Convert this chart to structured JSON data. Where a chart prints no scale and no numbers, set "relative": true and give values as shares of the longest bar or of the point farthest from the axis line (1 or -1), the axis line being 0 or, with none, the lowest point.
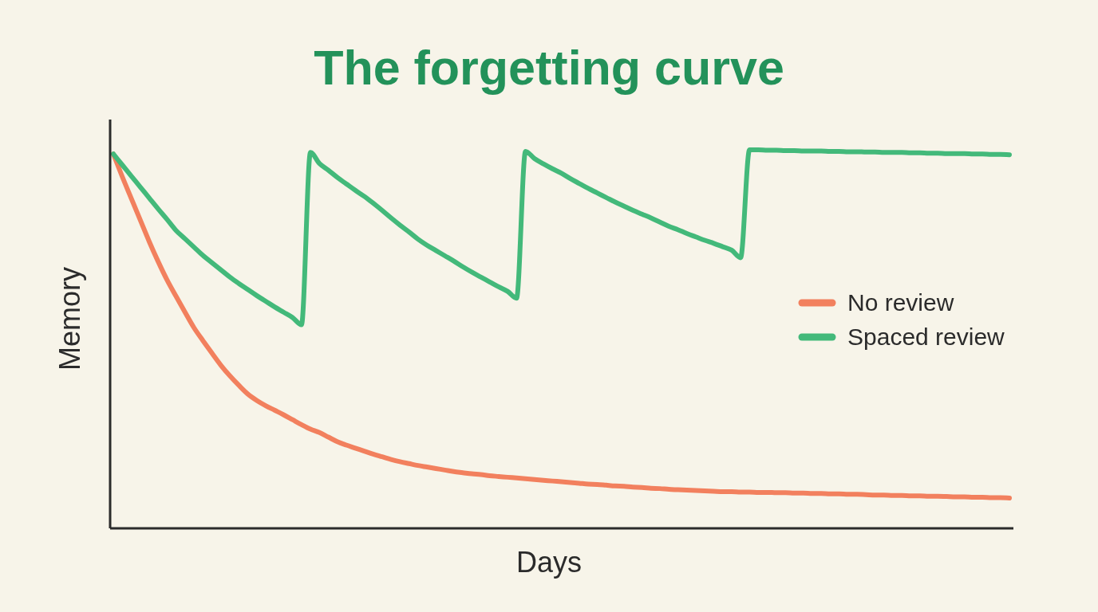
{
  "chart_data": {
    "type": "line",
    "title": "The forgetting curve",
    "xlabel": "Days",
    "ylabel": "Memory",
    "relative": true,
    "legend": "right",
    "categories": [
      null,
      null,
      null,
      null,
      null,
      null,
      null,
      null,
      null,
      null,
      null,
      null,
      null,
      null,
      null,
      null,
      null,
      null,
      null,
      null,
      null,
      null,
      null,
      null,
      null,
      null,
      null,
      null,
      null,
      null,
      null,
      null,
      null,
      null,
      null,
      null,
      null,
      null,
      null,
      null,
      null,
      null,
      null,
      null,
      null,
      null,
      null,
      null,
      null,
      null,
      null,
      null,
      null,
      null,
      null,
      null,
      null,
      null,
      null,
      null,
      null,
      null,
      null,
      null,
      null,
      null,
      null,
      null,
      null,
      null,
      null,
      null,
      null,
      null,
      null,
      null,
      null,
      null,
      null,
      null,
      null,
      null,
      null,
      null,
      null,
      null,
      null,
      null,
      null,
      null,
      null,
      null,
      null,
      null,
      null,
      null,
      null,
      null,
      null,
      null,
      null
    ],
    "series": [
      {
        "name": "No review",
        "color": "#f2805e",
        "values": [
          0.989,
          0.929,
          0.872,
          0.815,
          0.758,
          0.705,
          0.656,
          0.613,
          0.571,
          0.53,
          0.496,
          0.463,
          0.431,
          0.403,
          0.378,
          0.355,
          0.338,
          0.324,
          0.312,
          0.3,
          0.287,
          0.274,
          0.262,
          0.253,
          0.241,
          0.229,
          0.22,
          0.212,
          0.204,
          0.196,
          0.189,
          0.182,
          0.176,
          0.171,
          0.166,
          0.162,
          0.158,
          0.154,
          0.15,
          0.147,
          0.144,
          0.142,
          0.139,
          0.137,
          0.135,
          0.133,
          0.131,
          0.129,
          0.127,
          0.125,
          0.123,
          0.121,
          0.119,
          0.117,
          0.116,
          0.114,
          0.112,
          0.111,
          0.109,
          0.108,
          0.106,
          0.105,
          0.103,
          0.102,
          0.101,
          0.1,
          0.099,
          0.098,
          0.097,
          0.097,
          0.096,
          0.096,
          0.095,
          0.095,
          0.094,
          0.094,
          0.093,
          0.093,
          0.092,
          0.092,
          0.091,
          0.091,
          0.09,
          0.09,
          0.089,
          0.088,
          0.088,
          0.087,
          0.087,
          0.086,
          0.086,
          0.085,
          0.085,
          0.084,
          0.083,
          0.083,
          0.082,
          0.082,
          0.081,
          0.081,
          0.08
        ]
      },
      {
        "name": "Spaced review",
        "color": "#43b97a",
        "values": [
          0.989,
          0.96,
          0.931,
          0.902,
          0.873,
          0.844,
          0.816,
          0.787,
          0.765,
          0.743,
          0.721,
          0.702,
          0.683,
          0.664,
          0.647,
          0.631,
          0.615,
          0.6,
          0.585,
          0.571,
          0.557,
          0.538,
          0.993,
          0.964,
          0.946,
          0.927,
          0.91,
          0.893,
          0.877,
          0.859,
          0.84,
          0.82,
          0.801,
          0.783,
          0.764,
          0.748,
          0.734,
          0.72,
          0.706,
          0.691,
          0.677,
          0.664,
          0.651,
          0.638,
          0.626,
          0.608,
          0.996,
          0.977,
          0.963,
          0.95,
          0.938,
          0.924,
          0.911,
          0.898,
          0.886,
          0.874,
          0.862,
          0.851,
          0.84,
          0.83,
          0.82,
          0.809,
          0.798,
          0.789,
          0.779,
          0.77,
          0.761,
          0.753,
          0.744,
          0.735,
          0.715,
          1,
          1,
          0.999,
          0.999,
          0.998,
          0.998,
          0.997,
          0.997,
          0.997,
          0.996,
          0.996,
          0.995,
          0.995,
          0.994,
          0.994,
          0.993,
          0.993,
          0.993,
          0.992,
          0.992,
          0.991,
          0.991,
          0.99,
          0.99,
          0.99,
          0.989,
          0.989,
          0.988,
          0.988,
          0.987
        ]
      }
    ]
  }
}
